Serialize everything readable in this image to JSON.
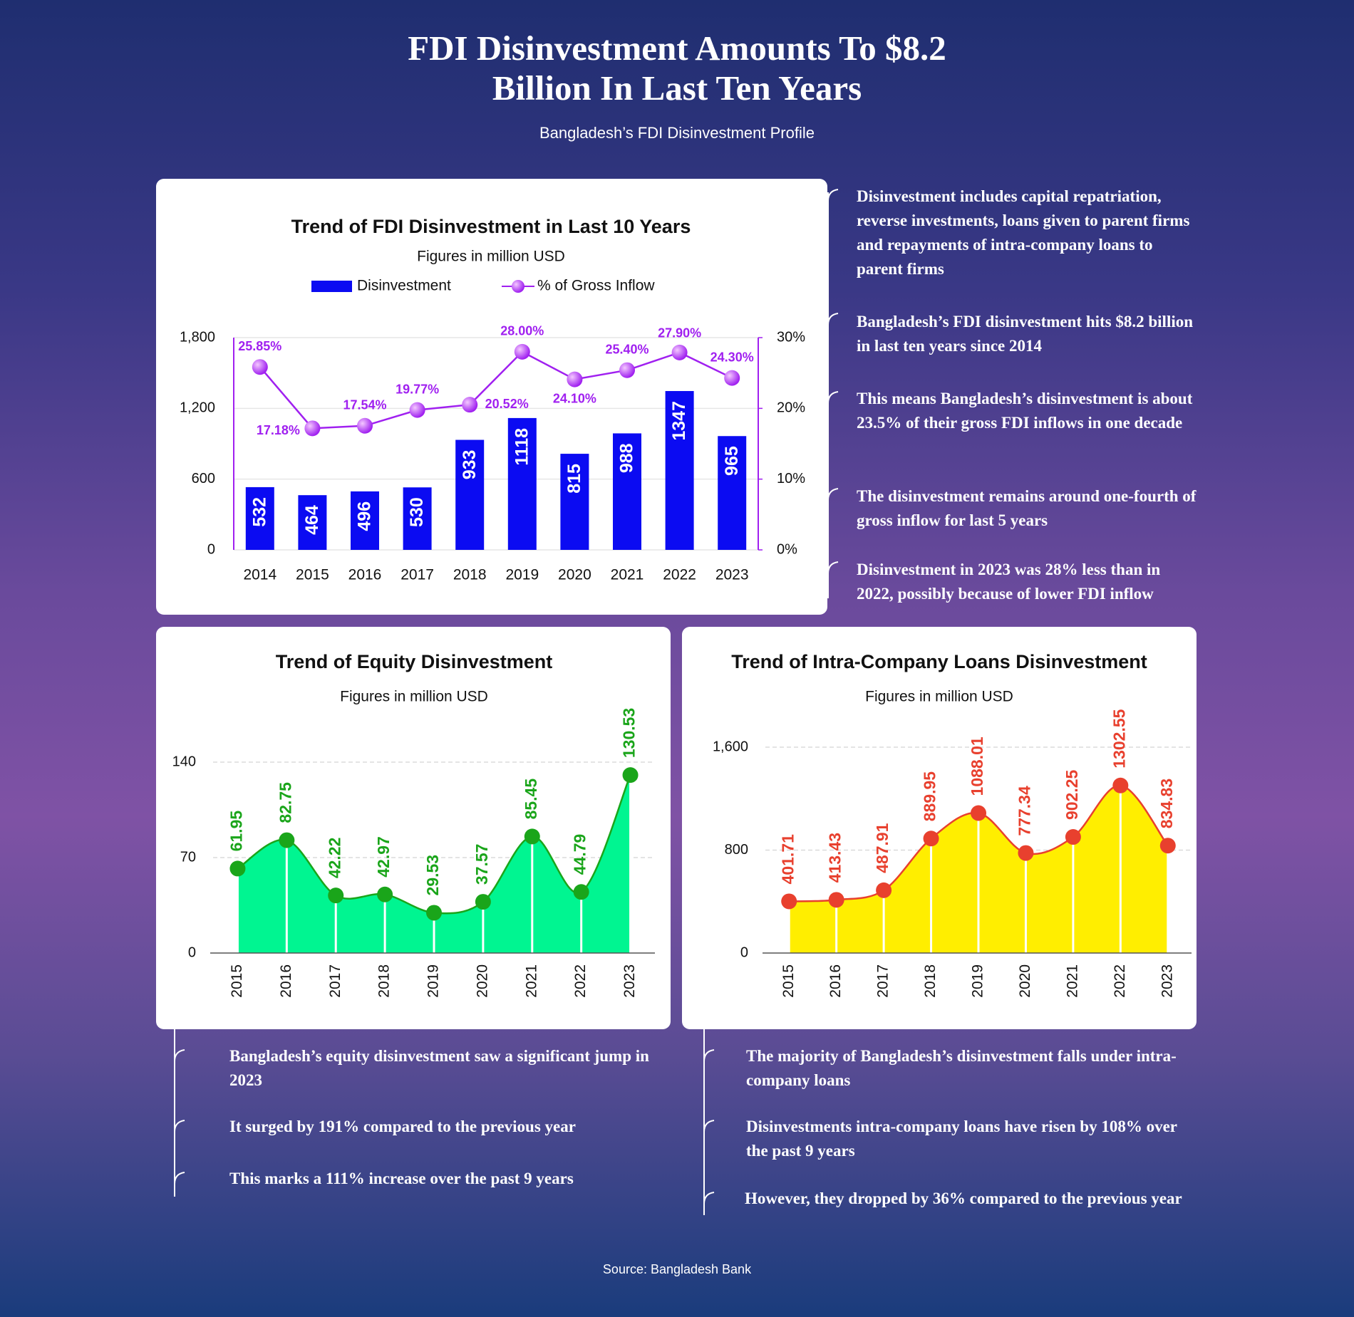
{
  "header": {
    "title": "FDI Disinvestment Amounts To $8.2 Billion In Last Ten Years",
    "subtitle": "Bangladesh’s FDI Disinvestment Profile"
  },
  "chart_data": [
    {
      "type": "bar",
      "title": "Trend of FDI Disinvestment in Last 10 Years",
      "subtitle": "Figures in million USD",
      "categories": [
        "2014",
        "2015",
        "2016",
        "2017",
        "2018",
        "2019",
        "2020",
        "2021",
        "2022",
        "2023"
      ],
      "series": [
        {
          "name": "Disinvestment",
          "color": "#0b0bf2",
          "values": [
            532,
            464,
            496,
            530,
            933,
            1118,
            815,
            988,
            1347,
            965
          ]
        },
        {
          "name": "% of Gross Inflow",
          "type": "line",
          "axis": "y2",
          "color": "#a020f0",
          "values": [
            25.85,
            17.18,
            17.54,
            19.77,
            20.52,
            28.0,
            24.1,
            25.4,
            27.9,
            24.3
          ],
          "value_labels": [
            "25.85%",
            "17.18%",
            "17.54%",
            "19.77%",
            "20.52%",
            "28.00%",
            "24.10%",
            "25.40%",
            "27.90%",
            "24.30%"
          ]
        }
      ],
      "ylim": [
        0,
        1800
      ],
      "yticks": [
        0,
        600,
        {
          "value": 1200,
          "label": "1,200"
        },
        {
          "value": 1800,
          "label": "1,800"
        }
      ],
      "y2lim": [
        0,
        30
      ],
      "y2ticks": [
        {
          "value": 0,
          "label": "0%"
        },
        {
          "value": 10,
          "label": "10%"
        },
        {
          "value": 20,
          "label": "20%"
        },
        {
          "value": 30,
          "label": "30%"
        }
      ],
      "grid": true,
      "legend": "top"
    },
    {
      "type": "area",
      "title": "Trend of Equity Disinvestment",
      "subtitle": "Figures in million USD",
      "categories": [
        "2015",
        "2016",
        "2017",
        "2018",
        "2019",
        "2020",
        "2021",
        "2022",
        "2023"
      ],
      "values": [
        61.95,
        82.75,
        42.22,
        42.97,
        29.53,
        37.57,
        85.45,
        44.79,
        130.53
      ],
      "color": "#00f591",
      "line_color": "#1aa51a",
      "ylim": [
        0,
        140
      ],
      "yticks": [
        0,
        70,
        140
      ],
      "grid": true
    },
    {
      "type": "area",
      "title": "Trend of Intra-Company Loans Disinvestment",
      "subtitle": "Figures in million USD",
      "categories": [
        "2015",
        "2016",
        "2017",
        "2018",
        "2019",
        "2020",
        "2021",
        "2022",
        "2023"
      ],
      "values": [
        401.71,
        413.43,
        487.91,
        889.95,
        1088.01,
        777.34,
        902.25,
        1302.55,
        834.83
      ],
      "color": "#ffee00",
      "line_color": "#e8402e",
      "ylim": [
        0,
        1600
      ],
      "yticks": [
        0,
        800,
        {
          "value": 1600,
          "label": "1,600"
        }
      ],
      "grid": true
    }
  ],
  "notes": {
    "overall": [
      "Disinvestment includes capital repatriation, reverse investments, loans given to parent firms and repayments of intra-company loans to parent firms",
      "Bangladesh’s FDI disinvestment hits $8.2 billion in last ten years since 2014",
      "This means Bangladesh’s disinvestment is about 23.5% of their gross FDI inflows in one decade",
      "The disinvestment remains around one-fourth of gross inflow for last 5 years",
      "Disinvestment in 2023 was 28% less than in 2022, possibly because of lower FDI inflow"
    ],
    "equity": [
      "Bangladesh’s equity disinvestment saw a significant jump in 2023",
      "It surged by 191% compared to the previous year",
      "This marks a 111% increase over the past 9 years"
    ],
    "loans": [
      "The majority of Bangladesh’s disinvestment falls under intra-company loans",
      "Disinvestments intra-company loans have risen by 108% over the past 9 years",
      "However, they dropped by 36% compared to the previous year"
    ]
  },
  "source": "Source: Bangladesh Bank"
}
